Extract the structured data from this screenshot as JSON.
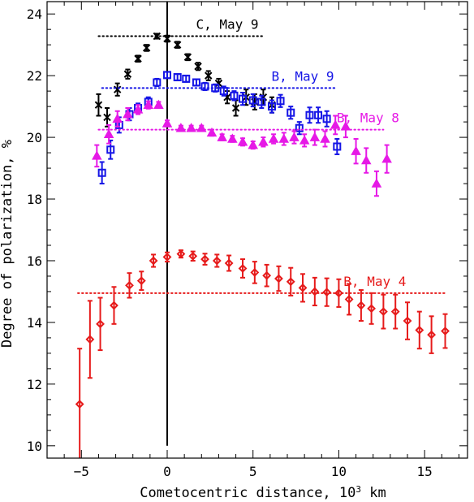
{
  "chart_data": {
    "type": "scatter",
    "title": "",
    "xlabel": "Cometocentric distance, 10",
    "xlabel_superscript": "3",
    "xlabel_unit": " km",
    "ylabel": "Degree of polarization, %",
    "xlim": [
      -7.0,
      17.5
    ],
    "ylim": [
      9.6,
      24.4
    ],
    "xticks": [
      -5,
      0,
      5,
      10,
      15
    ],
    "xtick_labels": [
      "−5",
      "0",
      "5",
      "10",
      "15"
    ],
    "yticks": [
      10,
      12,
      14,
      16,
      18,
      20,
      22,
      24
    ],
    "ytick_labels": [
      "10",
      "12",
      "14",
      "16",
      "18",
      "20",
      "22",
      "24"
    ],
    "grid": false,
    "vertical_line_x": 0,
    "series": [
      {
        "name": "C, May 9",
        "marker": "x",
        "color": "#000000",
        "mean": 23.28,
        "mean_x_range": [
          -4.0,
          5.6
        ],
        "points": [
          {
            "x": -4.0,
            "y": 21.05,
            "err": 0.35
          },
          {
            "x": -3.5,
            "y": 20.65,
            "err": 0.3
          },
          {
            "x": -2.9,
            "y": 21.55,
            "err": 0.2
          },
          {
            "x": -2.3,
            "y": 22.05,
            "err": 0.15
          },
          {
            "x": -1.7,
            "y": 22.55,
            "err": 0.1
          },
          {
            "x": -1.2,
            "y": 22.9,
            "err": 0.1
          },
          {
            "x": -0.6,
            "y": 23.28,
            "err": 0.08
          },
          {
            "x": 0.0,
            "y": 23.2,
            "err": 0.1
          },
          {
            "x": 0.6,
            "y": 23.0,
            "err": 0.1
          },
          {
            "x": 1.2,
            "y": 22.6,
            "err": 0.1
          },
          {
            "x": 1.8,
            "y": 22.3,
            "err": 0.12
          },
          {
            "x": 2.4,
            "y": 22.0,
            "err": 0.15
          },
          {
            "x": 3.0,
            "y": 21.75,
            "err": 0.15
          },
          {
            "x": 3.5,
            "y": 21.3,
            "err": 0.2
          },
          {
            "x": 4.0,
            "y": 20.95,
            "err": 0.25
          },
          {
            "x": 4.6,
            "y": 21.3,
            "err": 0.25
          },
          {
            "x": 5.1,
            "y": 21.15,
            "err": 0.25
          },
          {
            "x": 5.6,
            "y": 21.3,
            "err": 0.25
          },
          {
            "x": 6.1,
            "y": 21.05,
            "err": 0.25
          }
        ]
      },
      {
        "name": "B, May 9",
        "marker": "square",
        "color": "#1515e6",
        "mean": 21.6,
        "mean_x_range": [
          -3.8,
          9.8
        ],
        "points": [
          {
            "x": -3.8,
            "y": 18.85,
            "err": 0.35
          },
          {
            "x": -3.3,
            "y": 19.6,
            "err": 0.3
          },
          {
            "x": -2.8,
            "y": 20.4,
            "err": 0.25
          },
          {
            "x": -2.2,
            "y": 20.75,
            "err": 0.2
          },
          {
            "x": -1.7,
            "y": 20.95,
            "err": 0.15
          },
          {
            "x": -1.1,
            "y": 21.15,
            "err": 0.15
          },
          {
            "x": -0.6,
            "y": 21.78,
            "err": 0.12
          },
          {
            "x": 0.0,
            "y": 22.02,
            "err": 0.1
          },
          {
            "x": 0.6,
            "y": 21.95,
            "err": 0.1
          },
          {
            "x": 1.1,
            "y": 21.9,
            "err": 0.1
          },
          {
            "x": 1.7,
            "y": 21.78,
            "err": 0.1
          },
          {
            "x": 2.2,
            "y": 21.65,
            "err": 0.12
          },
          {
            "x": 2.8,
            "y": 21.6,
            "err": 0.12
          },
          {
            "x": 3.3,
            "y": 21.5,
            "err": 0.15
          },
          {
            "x": 3.9,
            "y": 21.35,
            "err": 0.15
          },
          {
            "x": 4.4,
            "y": 21.25,
            "err": 0.2
          },
          {
            "x": 5.0,
            "y": 21.2,
            "err": 0.2
          },
          {
            "x": 5.5,
            "y": 21.15,
            "err": 0.2
          },
          {
            "x": 6.1,
            "y": 21.0,
            "err": 0.2
          },
          {
            "x": 6.6,
            "y": 21.18,
            "err": 0.2
          },
          {
            "x": 7.2,
            "y": 20.8,
            "err": 0.2
          },
          {
            "x": 7.7,
            "y": 20.3,
            "err": 0.2
          },
          {
            "x": 8.3,
            "y": 20.72,
            "err": 0.25
          },
          {
            "x": 8.8,
            "y": 20.72,
            "err": 0.25
          },
          {
            "x": 9.3,
            "y": 20.6,
            "err": 0.25
          },
          {
            "x": 9.9,
            "y": 19.7,
            "err": 0.25
          }
        ]
      },
      {
        "name": "B, May 8",
        "marker": "triangle",
        "color": "#e619e6",
        "mean": 20.25,
        "mean_x_range": [
          -4.0,
          12.6
        ],
        "points": [
          {
            "x": -4.1,
            "y": 19.4,
            "err": 0.35
          },
          {
            "x": -3.4,
            "y": 20.1,
            "err": 0.3
          },
          {
            "x": -2.9,
            "y": 20.6,
            "err": 0.25
          },
          {
            "x": -2.3,
            "y": 20.75,
            "err": 0.2
          },
          {
            "x": -1.7,
            "y": 20.9,
            "err": 0.15
          },
          {
            "x": -1.1,
            "y": 21.05,
            "err": 0.12
          },
          {
            "x": -0.5,
            "y": 21.05,
            "err": 0.1
          },
          {
            "x": 0.0,
            "y": 20.45,
            "err": 0.1
          },
          {
            "x": 0.8,
            "y": 20.3,
            "err": 0.08
          },
          {
            "x": 1.4,
            "y": 20.3,
            "err": 0.08
          },
          {
            "x": 2.0,
            "y": 20.3,
            "err": 0.08
          },
          {
            "x": 2.6,
            "y": 20.15,
            "err": 0.1
          },
          {
            "x": 3.2,
            "y": 20.0,
            "err": 0.1
          },
          {
            "x": 3.8,
            "y": 19.95,
            "err": 0.1
          },
          {
            "x": 4.4,
            "y": 19.85,
            "err": 0.12
          },
          {
            "x": 5.0,
            "y": 19.75,
            "err": 0.12
          },
          {
            "x": 5.6,
            "y": 19.85,
            "err": 0.15
          },
          {
            "x": 6.2,
            "y": 19.95,
            "err": 0.15
          },
          {
            "x": 6.8,
            "y": 19.95,
            "err": 0.2
          },
          {
            "x": 7.4,
            "y": 20.0,
            "err": 0.2
          },
          {
            "x": 8.0,
            "y": 19.9,
            "err": 0.2
          },
          {
            "x": 8.6,
            "y": 20.0,
            "err": 0.25
          },
          {
            "x": 9.2,
            "y": 19.95,
            "err": 0.25
          },
          {
            "x": 9.8,
            "y": 20.4,
            "err": 0.3
          },
          {
            "x": 10.4,
            "y": 20.35,
            "err": 0.35
          },
          {
            "x": 11.0,
            "y": 19.55,
            "err": 0.4
          },
          {
            "x": 11.6,
            "y": 19.25,
            "err": 0.4
          },
          {
            "x": 12.2,
            "y": 18.5,
            "err": 0.4
          },
          {
            "x": 12.8,
            "y": 19.3,
            "err": 0.45
          }
        ]
      },
      {
        "name": "B, May 4",
        "marker": "diamond",
        "color": "#e61a1a",
        "mean": 14.95,
        "mean_x_range": [
          -5.2,
          16.2
        ],
        "points": [
          {
            "x": -5.1,
            "y": 11.35,
            "err": 1.8
          },
          {
            "x": -4.5,
            "y": 13.45,
            "err": 1.25
          },
          {
            "x": -3.9,
            "y": 13.95,
            "err": 0.85
          },
          {
            "x": -3.1,
            "y": 14.55,
            "err": 0.6
          },
          {
            "x": -2.2,
            "y": 15.2,
            "err": 0.4
          },
          {
            "x": -1.5,
            "y": 15.35,
            "err": 0.3
          },
          {
            "x": -0.8,
            "y": 16.0,
            "err": 0.2
          },
          {
            "x": 0.0,
            "y": 16.12,
            "err": 0.15
          },
          {
            "x": 0.8,
            "y": 16.22,
            "err": 0.12
          },
          {
            "x": 1.5,
            "y": 16.15,
            "err": 0.15
          },
          {
            "x": 2.2,
            "y": 16.05,
            "err": 0.18
          },
          {
            "x": 2.9,
            "y": 16.0,
            "err": 0.2
          },
          {
            "x": 3.6,
            "y": 15.92,
            "err": 0.25
          },
          {
            "x": 4.4,
            "y": 15.75,
            "err": 0.3
          },
          {
            "x": 5.1,
            "y": 15.62,
            "err": 0.35
          },
          {
            "x": 5.8,
            "y": 15.52,
            "err": 0.35
          },
          {
            "x": 6.5,
            "y": 15.42,
            "err": 0.4
          },
          {
            "x": 7.2,
            "y": 15.32,
            "err": 0.45
          },
          {
            "x": 7.9,
            "y": 15.12,
            "err": 0.45
          },
          {
            "x": 8.6,
            "y": 15.0,
            "err": 0.45
          },
          {
            "x": 9.3,
            "y": 14.98,
            "err": 0.45
          },
          {
            "x": 10.0,
            "y": 14.95,
            "err": 0.45
          },
          {
            "x": 10.6,
            "y": 14.75,
            "err": 0.5
          },
          {
            "x": 11.3,
            "y": 14.55,
            "err": 0.5
          },
          {
            "x": 11.9,
            "y": 14.45,
            "err": 0.5
          },
          {
            "x": 12.6,
            "y": 14.35,
            "err": 0.55
          },
          {
            "x": 13.3,
            "y": 14.35,
            "err": 0.55
          },
          {
            "x": 14.0,
            "y": 14.05,
            "err": 0.6
          },
          {
            "x": 14.7,
            "y": 13.75,
            "err": 0.6
          },
          {
            "x": 15.4,
            "y": 13.6,
            "err": 0.6
          },
          {
            "x": 16.2,
            "y": 13.72,
            "err": 0.55
          }
        ]
      }
    ]
  }
}
